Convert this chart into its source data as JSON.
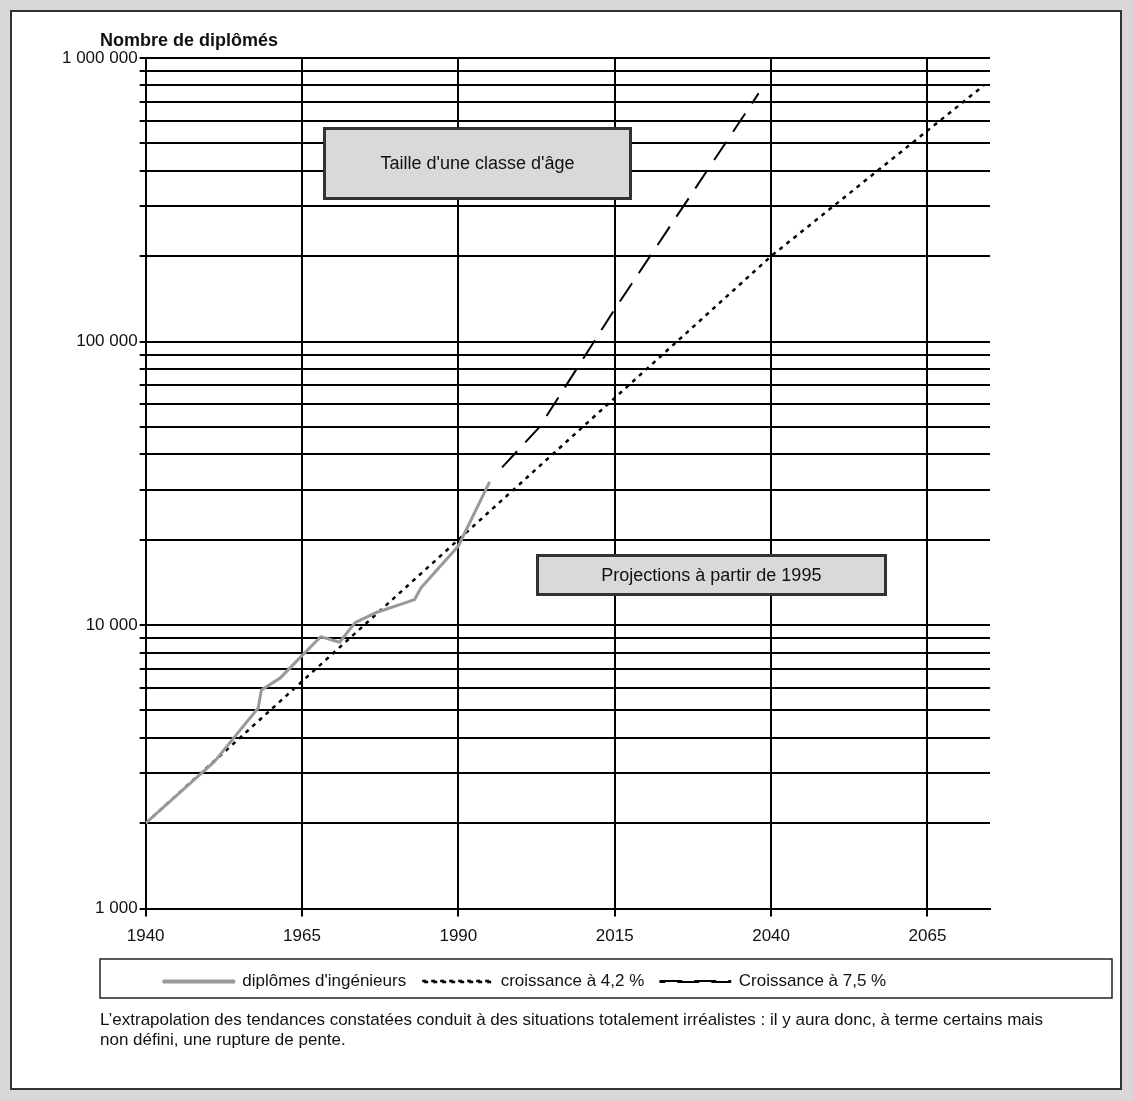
{
  "chart_data": {
    "type": "line",
    "ylabel": "Nombre de diplômés",
    "xlim": [
      1940,
      2075
    ],
    "xticks": [
      1940,
      1965,
      1990,
      2015,
      2040,
      2065
    ],
    "ylim": [
      1000,
      1000000
    ],
    "log": true,
    "yticks": [
      {
        "value": 1000,
        "label": "1 000"
      },
      {
        "value": 2000,
        "label": null
      },
      {
        "value": 3000,
        "label": null
      },
      {
        "value": 4000,
        "label": null
      },
      {
        "value": 5000,
        "label": null
      },
      {
        "value": 6000,
        "label": null
      },
      {
        "value": 7000,
        "label": null
      },
      {
        "value": 8000,
        "label": null
      },
      {
        "value": 9000,
        "label": null
      },
      {
        "value": 10000,
        "label": "10 000"
      },
      {
        "value": 20000,
        "label": null
      },
      {
        "value": 30000,
        "label": null
      },
      {
        "value": 40000,
        "label": null
      },
      {
        "value": 50000,
        "label": null
      },
      {
        "value": 60000,
        "label": null
      },
      {
        "value": 70000,
        "label": null
      },
      {
        "value": 80000,
        "label": null
      },
      {
        "value": 90000,
        "label": null
      },
      {
        "value": 100000,
        "label": "100 000"
      },
      {
        "value": 200000,
        "label": null
      },
      {
        "value": 300000,
        "label": null
      },
      {
        "value": 400000,
        "label": null
      },
      {
        "value": 500000,
        "label": null
      },
      {
        "value": 600000,
        "label": null
      },
      {
        "value": 700000,
        "label": null
      },
      {
        "value": 800000,
        "label": null
      },
      {
        "value": 900000,
        "label": null
      },
      {
        "value": 1000000,
        "label": "1 000 000"
      }
    ],
    "grid": true,
    "legend": "bottom",
    "series": [
      {
        "name": "diplômes d'ingénieurs",
        "color": "#999999",
        "line_style": "solid",
        "x": [
          1940,
          1951,
          1958,
          1958.5,
          1961.5,
          1965,
          1968,
          1971,
          1973.5,
          1977,
          1983,
          1984,
          1990,
          1995
        ],
        "values": [
          2000,
          3300,
          5100,
          5900,
          6500,
          7800,
          9100,
          8700,
          10200,
          11100,
          12300,
          13500,
          19000,
          32000
        ]
      },
      {
        "name": "croissance à 4,2 %",
        "color": "#000000",
        "line_style": "dotted",
        "x": [
          1940,
          1990,
          2040,
          2074
        ],
        "values": [
          2000,
          20000,
          200000,
          800000
        ]
      },
      {
        "name": "Croissance à 7,5 %",
        "color": "#000000",
        "line_style": "dashed",
        "x": [
          1997,
          2003,
          2015,
          2038
        ],
        "values": [
          36000,
          50000,
          130000,
          750000
        ]
      }
    ],
    "annotations": [
      "Taille d'une classe d'âge",
      "Projections à partir de 1995",
      "L’extrapolation des tendances constatées conduit à des situations totalement irréalistes : il y aura donc, à terme certains mais non défini, une rupture de pente."
    ]
  }
}
